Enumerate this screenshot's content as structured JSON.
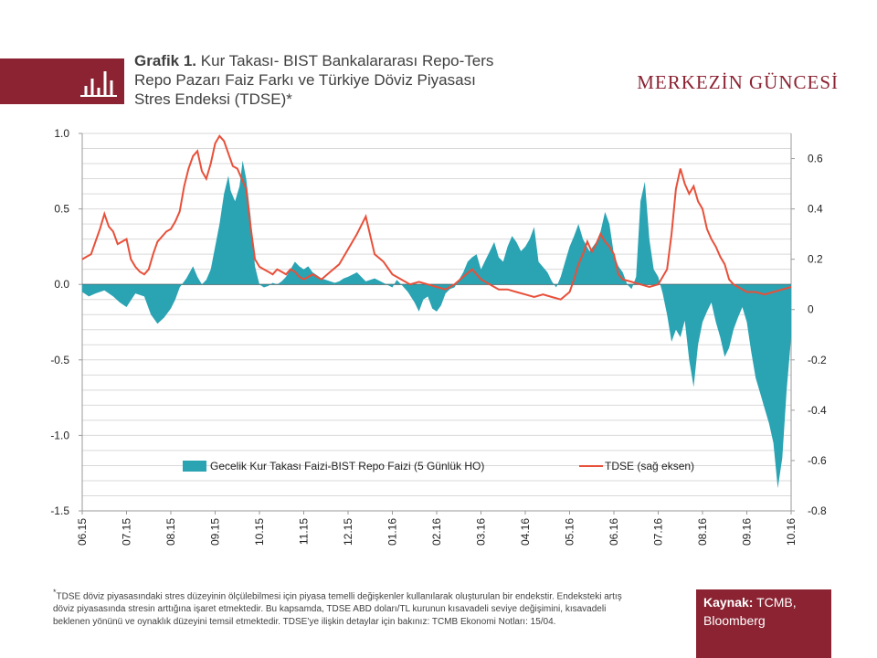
{
  "header": {
    "title_prefix": "Grafik 1.",
    "title_lines": [
      "Kur Takası- BIST Bankalararası Repo-Ters",
      "Repo Pazarı Faiz Farkı ve Türkiye  Döviz  Piyasası",
      "Stres Endeksi (TDSE)*"
    ],
    "brand": "MERKEZİN GÜNCESİ",
    "brand_color": "#8b2332",
    "icon": "bar-chart-icon"
  },
  "chart_data": {
    "type": "area",
    "x_tick_labels": [
      "06.15",
      "07.15",
      "08.15",
      "09.15",
      "10.15",
      "11.15",
      "12.15",
      "01.16",
      "02.16",
      "03.16",
      "04.16",
      "05.16",
      "06.16",
      "07.16",
      "08.16",
      "09.16",
      "10.16"
    ],
    "left_axis": {
      "min": -1.5,
      "max": 1.0,
      "ticks": [
        "1.0",
        "0.5",
        "0.0",
        "-0.5",
        "-1.0",
        "-1.5"
      ]
    },
    "right_axis": {
      "min": -0.8,
      "max": 0.7,
      "ticks": [
        "0.6",
        "0.4",
        "0.2",
        "0",
        "-0.2",
        "-0.4",
        "-0.6",
        "-0.8"
      ]
    },
    "grid": true,
    "legend_position": "inside-bottom",
    "series": [
      {
        "name": "Gecelik Kur Takası Faizi-BIST  Repo Faizi (5 Günlük HO)",
        "kind": "area",
        "axis": "left",
        "color": "#2aa3b3",
        "x": [
          0,
          0.15,
          0.3,
          0.5,
          0.7,
          0.85,
          1.0,
          1.2,
          1.4,
          1.55,
          1.7,
          1.85,
          2.0,
          2.1,
          2.2,
          2.35,
          2.5,
          2.6,
          2.7,
          2.8,
          2.9,
          3.0,
          3.1,
          3.2,
          3.3,
          3.35,
          3.45,
          3.55,
          3.62,
          3.7,
          3.8,
          3.9,
          4.0,
          4.1,
          4.2,
          4.3,
          4.4,
          4.5,
          4.6,
          4.7,
          4.8,
          4.9,
          5.0,
          5.1,
          5.2,
          5.3,
          5.4,
          5.5,
          5.6,
          5.7,
          5.8,
          5.9,
          6.0,
          6.2,
          6.4,
          6.6,
          6.8,
          7.0,
          7.1,
          7.2,
          7.35,
          7.5,
          7.6,
          7.7,
          7.8,
          7.9,
          8.0,
          8.1,
          8.2,
          8.3,
          8.4,
          8.5,
          8.6,
          8.7,
          8.8,
          8.9,
          9.0,
          9.1,
          9.2,
          9.3,
          9.4,
          9.5,
          9.6,
          9.7,
          9.8,
          9.9,
          10.0,
          10.1,
          10.2,
          10.3,
          10.5,
          10.6,
          10.7,
          10.8,
          10.9,
          11.0,
          11.1,
          11.2,
          11.3,
          11.45,
          11.6,
          11.7,
          11.8,
          11.9,
          12.0,
          12.1,
          12.2,
          12.3,
          12.4,
          12.5,
          12.6,
          12.7,
          12.8,
          12.9,
          13.0,
          13.1,
          13.2,
          13.3,
          13.4,
          13.5,
          13.6,
          13.7,
          13.8,
          13.9,
          14.0,
          14.1,
          14.2,
          14.3,
          14.4,
          14.5,
          14.6,
          14.7,
          14.8,
          14.9,
          15.0,
          15.1,
          15.2,
          15.3,
          15.4,
          15.5,
          15.6,
          15.7,
          15.8,
          15.9,
          16.0
        ],
        "y": [
          -0.05,
          -0.08,
          -0.06,
          -0.04,
          -0.08,
          -0.12,
          -0.15,
          -0.06,
          -0.08,
          -0.2,
          -0.26,
          -0.22,
          -0.16,
          -0.1,
          -0.02,
          0.04,
          0.12,
          0.05,
          0.0,
          0.03,
          0.1,
          0.25,
          0.4,
          0.6,
          0.72,
          0.62,
          0.55,
          0.65,
          0.82,
          0.7,
          0.45,
          0.12,
          0.0,
          -0.02,
          -0.01,
          0.01,
          0.0,
          0.02,
          0.05,
          0.1,
          0.15,
          0.12,
          0.1,
          0.12,
          0.08,
          0.06,
          0.04,
          0.03,
          0.02,
          0.01,
          0.02,
          0.04,
          0.05,
          0.08,
          0.02,
          0.04,
          0.01,
          -0.02,
          0.03,
          0.0,
          -0.05,
          -0.12,
          -0.18,
          -0.1,
          -0.08,
          -0.16,
          -0.18,
          -0.14,
          -0.06,
          -0.03,
          -0.02,
          0.03,
          0.08,
          0.15,
          0.18,
          0.2,
          0.1,
          0.16,
          0.22,
          0.28,
          0.18,
          0.15,
          0.25,
          0.32,
          0.28,
          0.22,
          0.25,
          0.3,
          0.38,
          0.15,
          0.08,
          0.02,
          -0.02,
          0.05,
          0.15,
          0.25,
          0.32,
          0.4,
          0.3,
          0.22,
          0.28,
          0.35,
          0.48,
          0.4,
          0.2,
          0.12,
          0.08,
          0.0,
          -0.03,
          0.05,
          0.55,
          0.68,
          0.3,
          0.1,
          0.05,
          -0.06,
          -0.2,
          -0.38,
          -0.3,
          -0.35,
          -0.24,
          -0.5,
          -0.68,
          -0.4,
          -0.25,
          -0.18,
          -0.12,
          -0.25,
          -0.35,
          -0.48,
          -0.42,
          -0.3,
          -0.22,
          -0.15,
          -0.25,
          -0.45,
          -0.62,
          -0.72,
          -0.82,
          -0.92,
          -1.05,
          -1.35,
          -1.15,
          -0.7,
          -0.35
        ]
      },
      {
        "name": "TDSE (sağ eksen)",
        "kind": "line",
        "axis": "right",
        "color": "#e8503a",
        "x": [
          0,
          0.1,
          0.2,
          0.3,
          0.4,
          0.5,
          0.6,
          0.7,
          0.8,
          0.9,
          1.0,
          1.1,
          1.2,
          1.3,
          1.4,
          1.5,
          1.6,
          1.7,
          1.8,
          1.9,
          2.0,
          2.1,
          2.2,
          2.3,
          2.4,
          2.5,
          2.6,
          2.7,
          2.8,
          2.9,
          3.0,
          3.1,
          3.2,
          3.3,
          3.4,
          3.5,
          3.6,
          3.7,
          3.8,
          3.9,
          4.0,
          4.1,
          4.2,
          4.3,
          4.4,
          4.5,
          4.6,
          4.7,
          4.8,
          4.9,
          5.0,
          5.2,
          5.4,
          5.6,
          5.8,
          6.0,
          6.2,
          6.4,
          6.6,
          6.8,
          7.0,
          7.2,
          7.4,
          7.6,
          7.8,
          8.0,
          8.2,
          8.4,
          8.6,
          8.8,
          9.0,
          9.2,
          9.4,
          9.6,
          9.8,
          10.0,
          10.2,
          10.4,
          10.6,
          10.8,
          11.0,
          11.1,
          11.2,
          11.3,
          11.4,
          11.5,
          11.6,
          11.7,
          11.8,
          11.9,
          12.0,
          12.1,
          12.2,
          12.4,
          12.6,
          12.8,
          13.0,
          13.1,
          13.2,
          13.3,
          13.4,
          13.5,
          13.6,
          13.7,
          13.8,
          13.9,
          14.0,
          14.1,
          14.2,
          14.3,
          14.4,
          14.5,
          14.6,
          14.7,
          14.8,
          14.9,
          15.0,
          15.2,
          15.4,
          15.6,
          15.8,
          16.0
        ],
        "y": [
          0.2,
          0.21,
          0.22,
          0.27,
          0.32,
          0.38,
          0.33,
          0.31,
          0.26,
          0.27,
          0.28,
          0.2,
          0.17,
          0.15,
          0.14,
          0.16,
          0.22,
          0.27,
          0.29,
          0.31,
          0.32,
          0.35,
          0.39,
          0.49,
          0.56,
          0.61,
          0.63,
          0.55,
          0.52,
          0.58,
          0.66,
          0.69,
          0.67,
          0.62,
          0.57,
          0.56,
          0.52,
          0.48,
          0.33,
          0.2,
          0.17,
          0.16,
          0.15,
          0.14,
          0.16,
          0.15,
          0.14,
          0.16,
          0.15,
          0.13,
          0.12,
          0.14,
          0.12,
          0.15,
          0.18,
          0.24,
          0.3,
          0.37,
          0.22,
          0.19,
          0.14,
          0.12,
          0.1,
          0.11,
          0.1,
          0.09,
          0.08,
          0.1,
          0.13,
          0.16,
          0.12,
          0.1,
          0.08,
          0.08,
          0.07,
          0.06,
          0.05,
          0.06,
          0.05,
          0.04,
          0.07,
          0.12,
          0.18,
          0.22,
          0.27,
          0.23,
          0.26,
          0.3,
          0.27,
          0.25,
          0.22,
          0.14,
          0.12,
          0.11,
          0.1,
          0.09,
          0.1,
          0.13,
          0.16,
          0.3,
          0.48,
          0.56,
          0.5,
          0.46,
          0.49,
          0.43,
          0.4,
          0.32,
          0.28,
          0.25,
          0.21,
          0.18,
          0.12,
          0.1,
          0.09,
          0.08,
          0.07,
          0.07,
          0.06,
          0.07,
          0.08,
          0.09
        ]
      }
    ]
  },
  "footnote": {
    "marker": "*",
    "text": "TDSE döviz piyasasındaki stres düzeyinin ölçülebilmesi için piyasa temelli değişkenler kullanılarak oluşturulan bir endekstir. Endeksteki artış döviz piyasasında stresin arttığına işaret etmektedir. Bu kapsamda, TDSE ABD doları/TL kurunun kısavadeli seviye değişimini, kısavadeli beklenen yönünü ve oynaklık düzeyini temsil etmektedir. TDSE’ye ilişkin detaylar için bakınız: TCMB Ekonomi Notları: 15/04."
  },
  "source": {
    "label": "Kaynak:",
    "text": "TCMB, Bloomberg",
    "bg_color": "#8b2332"
  }
}
